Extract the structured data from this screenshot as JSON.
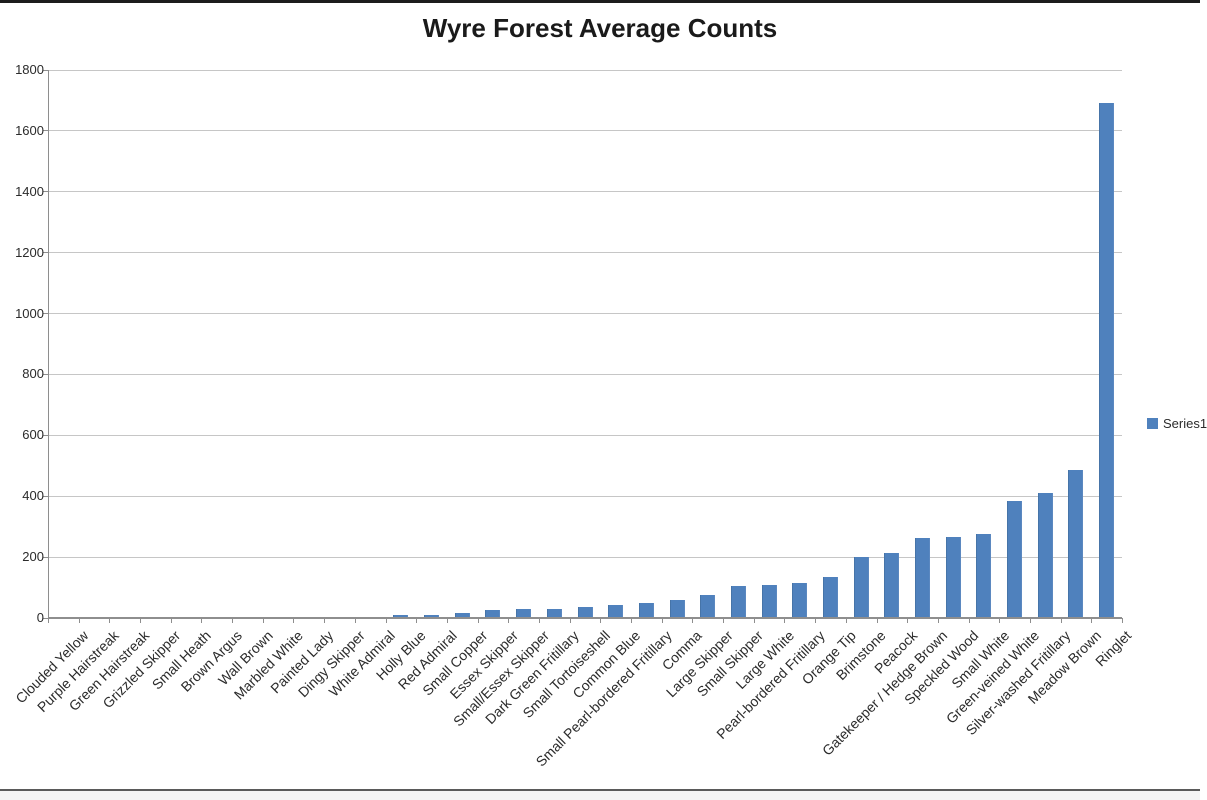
{
  "chart_data": {
    "type": "bar",
    "title": "Wyre Forest Average Counts",
    "series_name": "Series1",
    "legend_position": "right",
    "grid": true,
    "ylim": [
      0,
      1800
    ],
    "yticks": [
      0,
      200,
      400,
      600,
      800,
      1000,
      1200,
      1400,
      1600,
      1800
    ],
    "xlabel": "",
    "ylabel": "",
    "bar_color": "#4F81BD",
    "gridline_color": "#c6c6c6",
    "axis_color": "#8e8e8e",
    "categories": [
      "Clouded Yellow",
      "Purple Hairstreak",
      "Green Hairstreak",
      "Grizzled Skipper",
      "Small Heath",
      "Brown Argus",
      "Wall Brown",
      "Marbled White",
      "Painted Lady",
      "Dingy Skipper",
      "White Admiral",
      "Holly Blue",
      "Red Admiral",
      "Small Copper",
      "Essex Skipper",
      "Small/Essex Skipper",
      "Dark Green Fritillary",
      "Small Tortoiseshell",
      "Common Blue",
      "Small Pearl-bordered Fritillary",
      "Comma",
      "Large Skipper",
      "Small Skipper",
      "Large White",
      "Pearl-bordered Fritillary",
      "Orange Tip",
      "Brimstone",
      "Peacock",
      "Gatekeeper / Hedge Brown",
      "Speckled Wood",
      "Small White",
      "Green-veined White",
      "Silver-washed Fritillary",
      "Meadow Brown",
      "Ringlet"
    ],
    "values": [
      0,
      0,
      0,
      0,
      0,
      0,
      0,
      0,
      0,
      0,
      0,
      10,
      10,
      17,
      26,
      30,
      30,
      37,
      43,
      50,
      60,
      75,
      106,
      108,
      114,
      135,
      200,
      213,
      262,
      265,
      275,
      385,
      411,
      486,
      1693
    ]
  }
}
